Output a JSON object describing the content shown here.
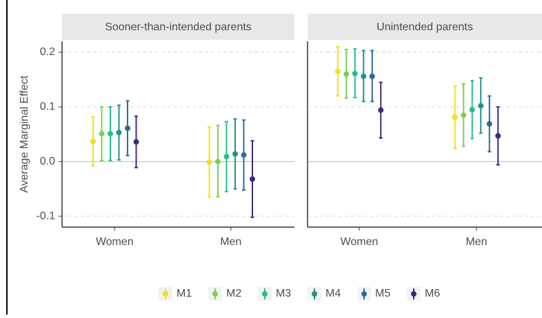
{
  "chart_data": {
    "type": "errorbar",
    "y_label": "Average Marginal Effect",
    "facets": [
      "Sooner-than-intended parents",
      "Unintended parents"
    ],
    "categories": [
      "Women",
      "Men"
    ],
    "ylim": [
      -0.12,
      0.22
    ],
    "yticks": [
      -0.1,
      {
        "value": 0,
        "label": "0.0"
      },
      0.1,
      0.2
    ],
    "grid": true,
    "series": [
      {
        "name": "M1",
        "color": "#f2e01c",
        "values": [
          [
            0.037,
            -0.001
          ],
          [
            0.165,
            0.081
          ]
        ],
        "lower": [
          [
            -0.008,
            -0.065
          ],
          [
            0.12,
            0.024
          ]
        ],
        "upper": [
          [
            0.082,
            0.063
          ],
          [
            0.21,
            0.138
          ]
        ]
      },
      {
        "name": "M2",
        "color": "#7ad151",
        "values": [
          [
            0.051,
            0.0
          ],
          [
            0.16,
            0.085
          ]
        ],
        "lower": [
          [
            0.002,
            -0.064
          ],
          [
            0.116,
            0.028
          ]
        ],
        "upper": [
          [
            0.1,
            0.066
          ],
          [
            0.205,
            0.142
          ]
        ]
      },
      {
        "name": "M3",
        "color": "#22c08a",
        "values": [
          [
            0.051,
            0.009
          ],
          [
            0.161,
            0.095
          ]
        ],
        "lower": [
          [
            0.002,
            -0.055
          ],
          [
            0.117,
            0.042
          ]
        ],
        "upper": [
          [
            0.1,
            0.073
          ],
          [
            0.206,
            0.148
          ]
        ]
      },
      {
        "name": "M4",
        "color": "#21918c",
        "values": [
          [
            0.053,
            0.014
          ],
          [
            0.156,
            0.102
          ]
        ],
        "lower": [
          [
            0.003,
            -0.05
          ],
          [
            0.11,
            0.052
          ]
        ],
        "upper": [
          [
            0.103,
            0.078
          ],
          [
            0.203,
            0.153
          ]
        ]
      },
      {
        "name": "M5",
        "color": "#2c6b8e",
        "values": [
          [
            0.061,
            0.012
          ],
          [
            0.156,
            0.069
          ]
        ],
        "lower": [
          [
            0.011,
            -0.052
          ],
          [
            0.11,
            0.018
          ]
        ],
        "upper": [
          [
            0.111,
            0.076
          ],
          [
            0.203,
            0.12
          ]
        ]
      },
      {
        "name": "M6",
        "color": "#3b2a7a",
        "values": [
          [
            0.036,
            -0.032
          ],
          [
            0.094,
            0.047
          ]
        ],
        "lower": [
          [
            -0.011,
            -0.102
          ],
          [
            0.043,
            -0.006
          ]
        ],
        "upper": [
          [
            0.083,
            0.038
          ],
          [
            0.145,
            0.1
          ]
        ]
      }
    ],
    "legend": "bottom"
  }
}
